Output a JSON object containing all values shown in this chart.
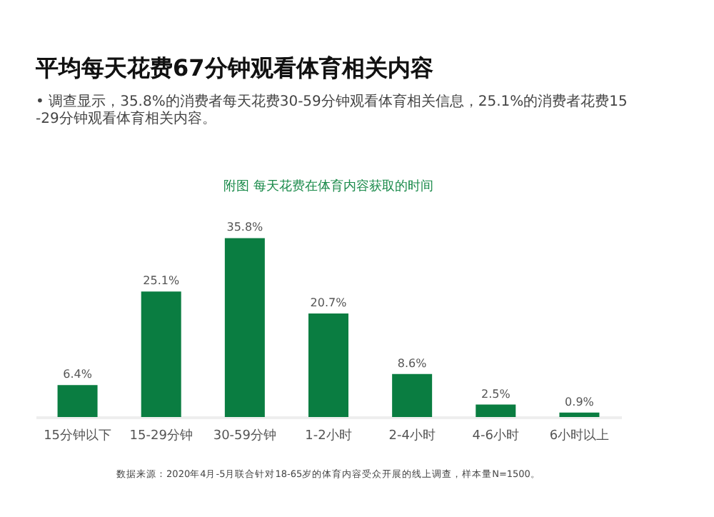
{
  "chart_data": {
    "type": "bar",
    "title": "平均每天花费67分钟观看体育相关内容",
    "subtitle": "•  调查显示，35.8%的消费者每天花费30-59分钟观看体育相关信息，25.1%的消费者花费15-29分钟观看体育相关内容。",
    "annotations": [
      "附图  每天花费在体育内容获取的时间",
      "数据来源：2020年4月-5月联合针对18-65岁的体育内容受众开展的线上调查，样本量N=1500。"
    ],
    "categories": [
      "15分钟以下",
      "15-29分钟",
      "30-59分钟",
      "1-2小时",
      "2-4小时",
      "4-6小时",
      "6小时以上"
    ],
    "values": [
      6.4,
      25.1,
      35.8,
      20.7,
      8.6,
      2.5,
      0.9
    ],
    "value_labels": [
      "6.4%",
      "25.1%",
      "35.8%",
      "20.7%",
      "8.6%",
      "2.5%",
      "0.9%"
    ],
    "color": "#0a7d41",
    "grid": false
  }
}
